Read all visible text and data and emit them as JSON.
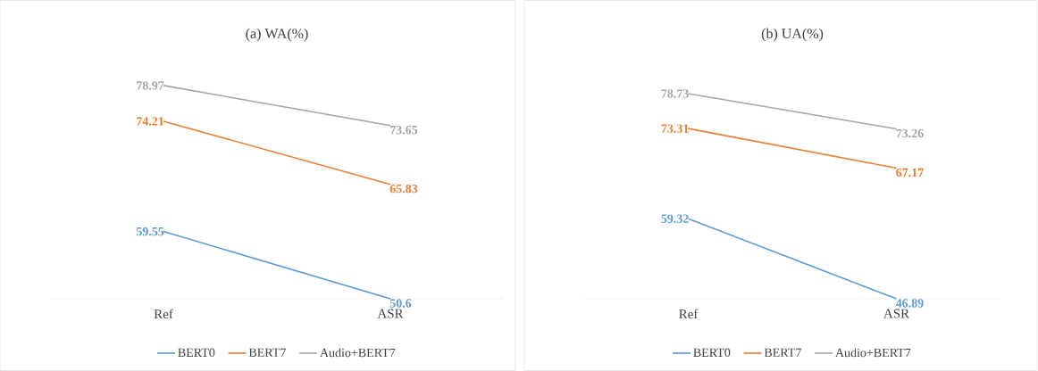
{
  "chart_data": [
    {
      "type": "line",
      "title": "(a) WA(%)",
      "categories": [
        "Ref",
        "ASR"
      ],
      "tick_labels": "x",
      "data_labels": true,
      "legend": "bottom",
      "grid": false,
      "marker": "none",
      "line_style": "solid",
      "series": [
        {
          "name": "BERT0",
          "color": "#5b9bd5",
          "values": [
            59.55,
            50.6
          ]
        },
        {
          "name": "BERT7",
          "color": "#ed7d31",
          "values": [
            74.21,
            65.83
          ]
        },
        {
          "name": "Audio+BERT7",
          "color": "#a5a5a5",
          "values": [
            78.97,
            73.65
          ]
        }
      ]
    },
    {
      "type": "line",
      "title": "(b) UA(%)",
      "categories": [
        "Ref",
        "ASR"
      ],
      "tick_labels": "x",
      "data_labels": true,
      "legend": "bottom",
      "grid": false,
      "marker": "none",
      "line_style": "solid",
      "series": [
        {
          "name": "BERT0",
          "color": "#5b9bd5",
          "values": [
            59.32,
            46.89
          ]
        },
        {
          "name": "BERT7",
          "color": "#ed7d31",
          "values": [
            73.31,
            67.17
          ]
        },
        {
          "name": "Audio+BERT7",
          "color": "#a5a5a5",
          "values": [
            78.73,
            73.26
          ]
        }
      ]
    }
  ]
}
